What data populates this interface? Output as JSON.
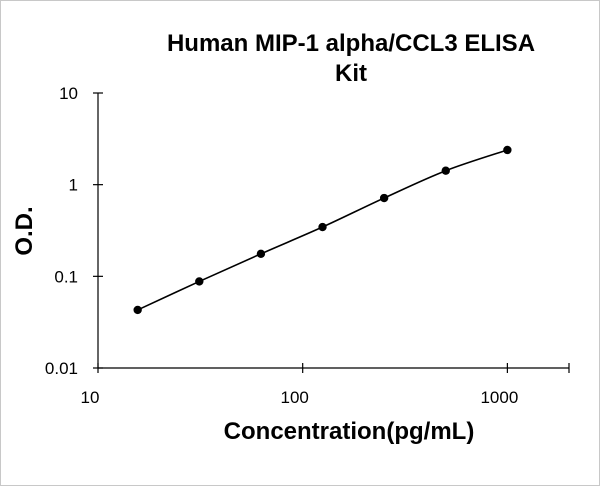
{
  "chart_data": {
    "type": "scatter",
    "title_lines": [
      "Human MIP-1 alpha/CCL3 ELISA",
      "Kit"
    ],
    "xlabel": "Concentration(pg/mL)",
    "ylabel": "O.D.",
    "x_scale": "log",
    "y_scale": "log",
    "xlim": [
      10,
      2000
    ],
    "ylim": [
      0.01,
      10
    ],
    "x_ticks": [
      10,
      100,
      1000
    ],
    "x_tick_labels": [
      "10",
      "100",
      "1000"
    ],
    "y_ticks": [
      0.01,
      0.1,
      1,
      10
    ],
    "y_tick_labels": [
      "0.01",
      "0.1",
      "1",
      "10"
    ],
    "grid": false,
    "legend": "none",
    "series": [
      {
        "x": [
          15.625,
          31.25,
          62.5,
          125,
          250,
          500,
          1000
        ],
        "y": [
          0.043,
          0.088,
          0.176,
          0.345,
          0.715,
          1.42,
          2.39
        ],
        "line": "smooth",
        "marker": "circle"
      }
    ],
    "colors": {
      "line": "#000000",
      "marker": "#000000",
      "axis": "#000000"
    }
  }
}
